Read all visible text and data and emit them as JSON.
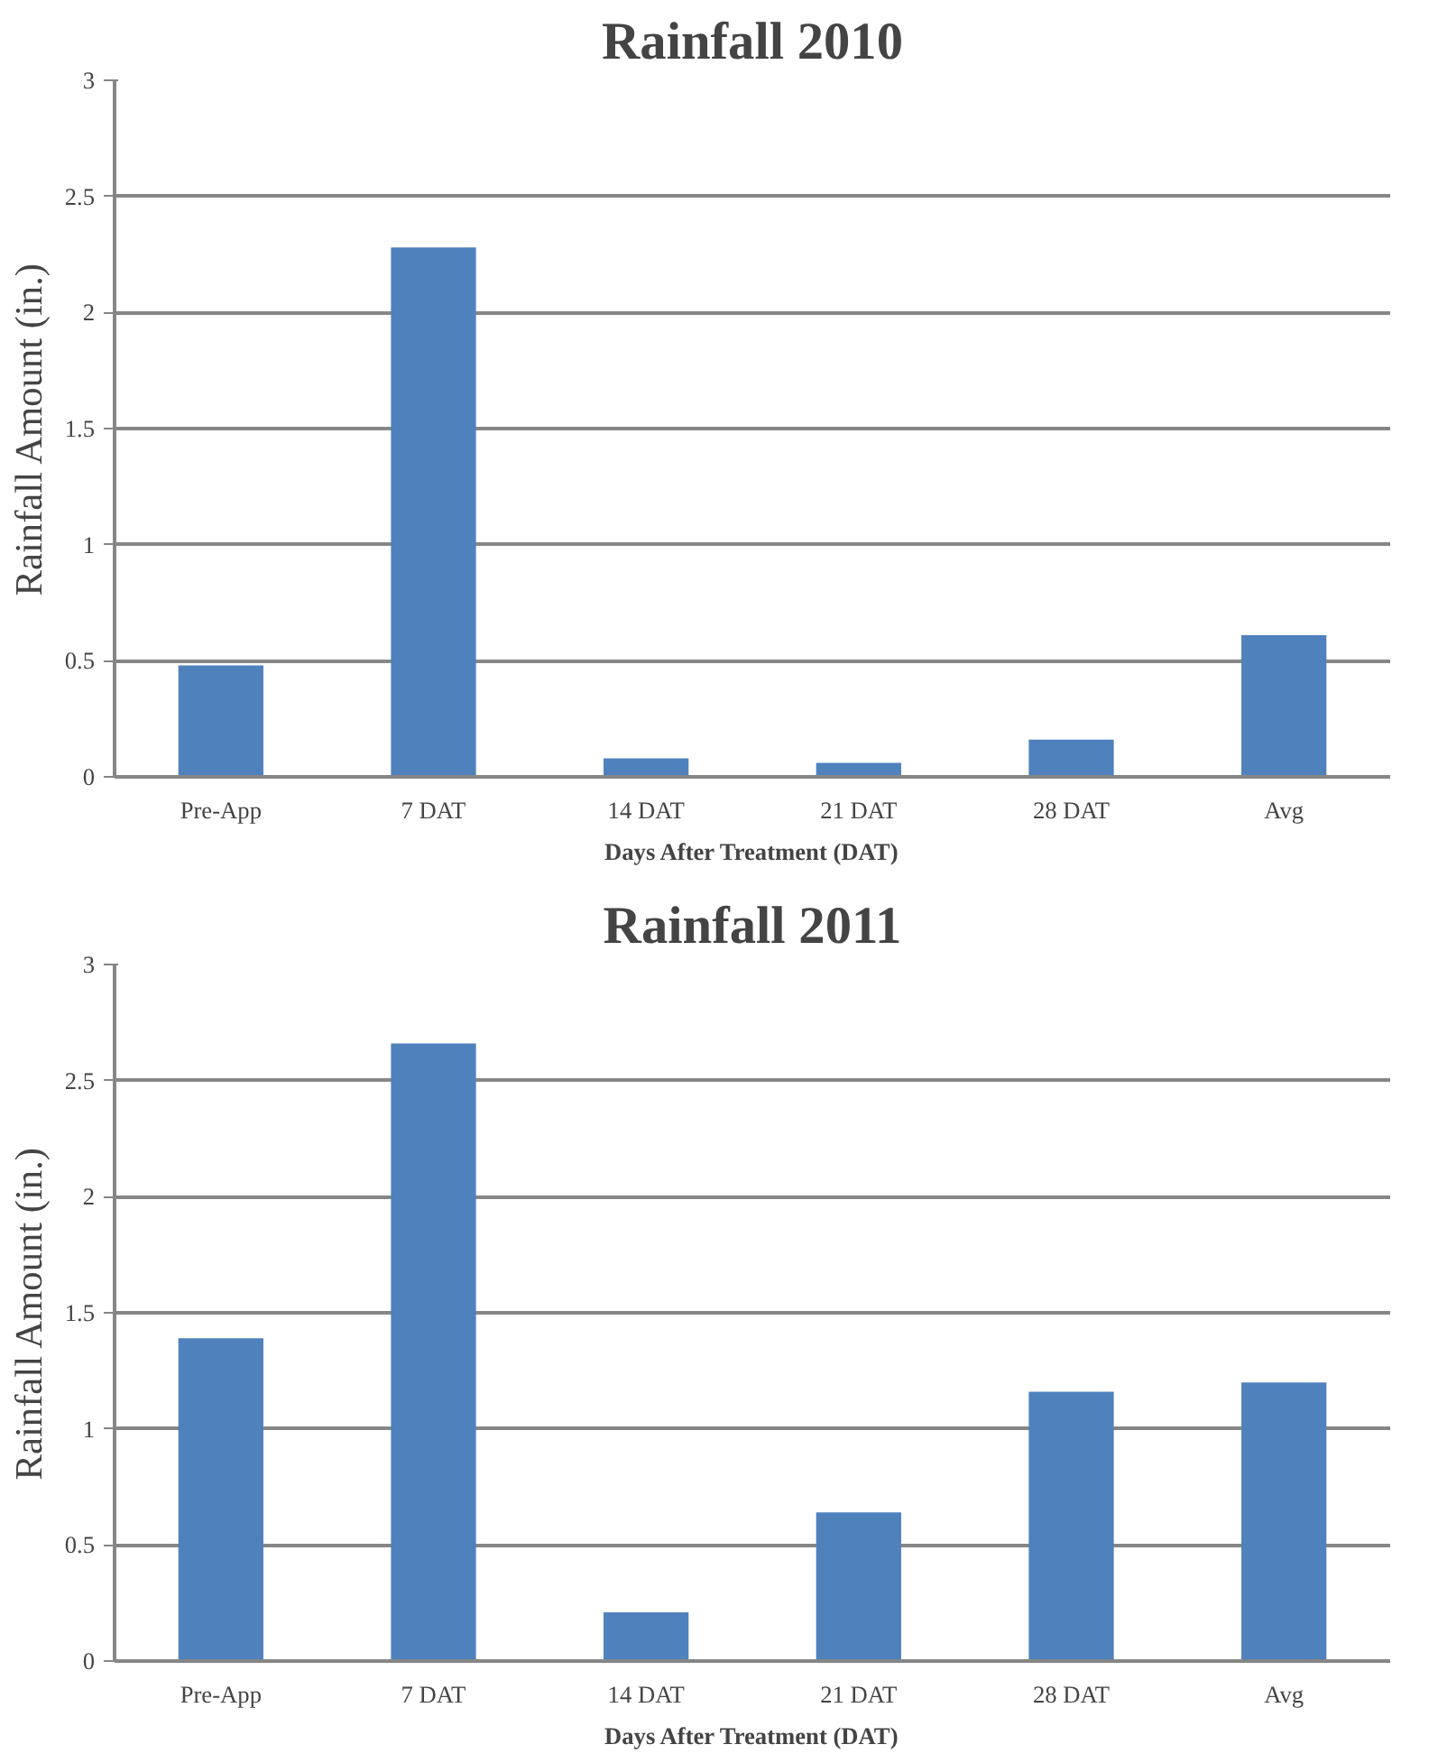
{
  "chart_data": [
    {
      "type": "bar",
      "title": "Rainfall 2010",
      "xlabel": "Days After Treatment (DAT)",
      "ylabel": "Rainfall Amount (in.)",
      "categories": [
        "Pre-App",
        "7 DAT",
        "14 DAT",
        "21 DAT",
        "28 DAT",
        "Avg"
      ],
      "values": [
        0.48,
        2.28,
        0.08,
        0.06,
        0.16,
        0.61
      ],
      "color": "#4f81bd",
      "ylim": [
        0,
        3
      ],
      "yticks": [
        0,
        0.5,
        1,
        1.5,
        2,
        2.5,
        3
      ],
      "grid": "y"
    },
    {
      "type": "bar",
      "title": "Rainfall 2011",
      "xlabel": "Days After Treatment (DAT)",
      "ylabel": "Rainfall Amount (in.)",
      "categories": [
        "Pre-App",
        "7 DAT",
        "14 DAT",
        "21 DAT",
        "28 DAT",
        "Avg"
      ],
      "values": [
        1.39,
        2.66,
        0.21,
        0.64,
        1.16,
        1.2
      ],
      "color": "#4f81bd",
      "ylim": [
        0,
        3
      ],
      "yticks": [
        0,
        0.5,
        1,
        1.5,
        2,
        2.5,
        3
      ],
      "grid": "y"
    }
  ]
}
